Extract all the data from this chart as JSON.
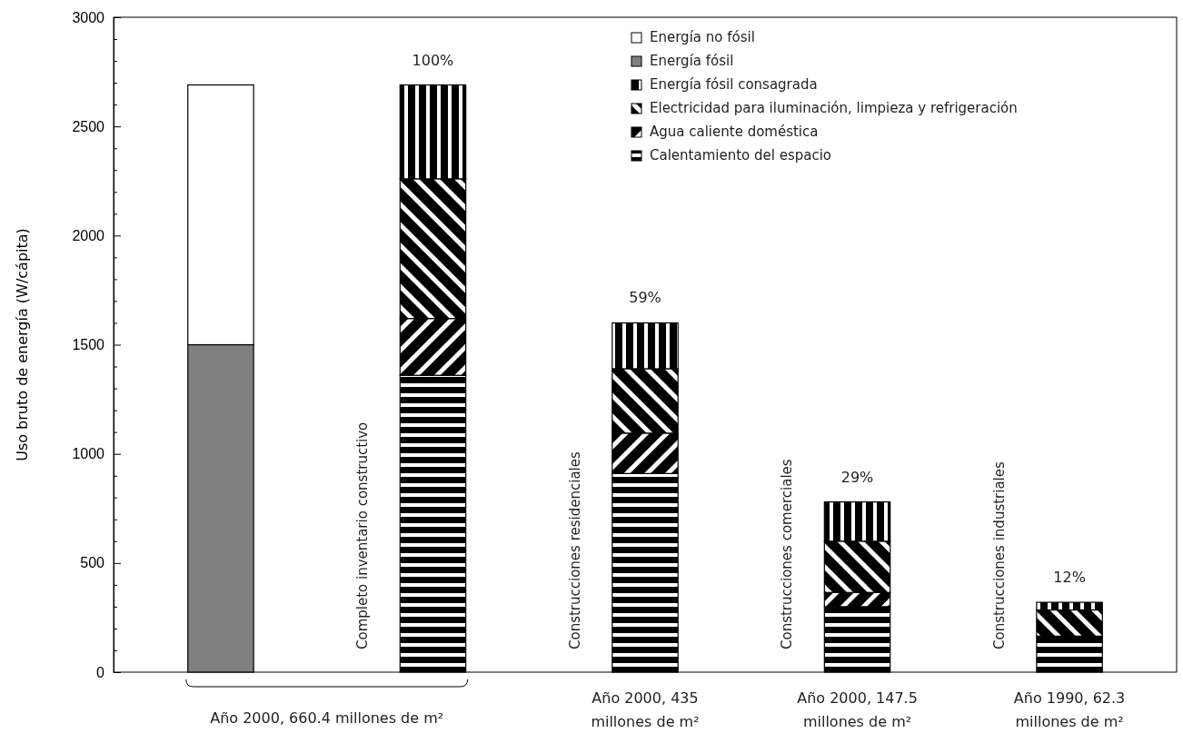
{
  "chart_data": {
    "type": "bar",
    "stacked": true,
    "ylabel": "Uso bruto de energía  (W/cápita)",
    "categories": [
      null,
      null,
      "Año 2000, 435 millones de m²",
      "Año 2000, 147.5 millones de m²",
      "Año 1990, 62.3 millones de m²"
    ],
    "series": [
      {
        "name": "Calentamiento del espacio",
        "color": "#000000",
        "values": [
          null,
          1360,
          910,
          300,
          165
        ]
      },
      {
        "name": "Agua caliente doméstica",
        "color": "#000000",
        "values": [
          null,
          260,
          185,
          65,
          null
        ]
      },
      {
        "name": "Electricidad para iluminación, limpieza y refrigeración",
        "color": "#000000",
        "values": [
          null,
          640,
          295,
          235,
          120
        ]
      },
      {
        "name": "Energía fósil consagrada",
        "color": "#000000",
        "values": [
          null,
          430,
          210,
          180,
          35
        ]
      },
      {
        "name": "Energía fósil",
        "color": "#808080",
        "values": [
          1500,
          null,
          null,
          null,
          null
        ]
      },
      {
        "name": "Energía no fósil",
        "color": "#ffffff",
        "values": [
          1190,
          null,
          null,
          null,
          null
        ]
      }
    ],
    "annotations": [
      "Completo inventario constructivo",
      "Construcciones residenciales",
      "Construcciones comerciales",
      "Construcciones industriales",
      "Año 2000, 660.4 millones de m²",
      "100%",
      "59%",
      "29%",
      "12%"
    ],
    "ylim": [
      0,
      3000
    ],
    "yticks": [
      0,
      {
        "value": 100,
        "label": null
      },
      {
        "value": 200,
        "label": null
      },
      {
        "value": 300,
        "label": null
      },
      {
        "value": 400,
        "label": null
      },
      500,
      {
        "value": 600,
        "label": null
      },
      {
        "value": 700,
        "label": null
      },
      {
        "value": 800,
        "label": null
      },
      {
        "value": 900,
        "label": null
      },
      1000,
      {
        "value": 1100,
        "label": null
      },
      {
        "value": 1200,
        "label": null
      },
      {
        "value": 1300,
        "label": null
      },
      {
        "value": 1400,
        "label": null
      },
      1500,
      {
        "value": 1600,
        "label": null
      },
      {
        "value": 1700,
        "label": null
      },
      {
        "value": 1800,
        "label": null
      },
      {
        "value": 1900,
        "label": null
      },
      2000,
      {
        "value": 2100,
        "label": null
      },
      {
        "value": 2200,
        "label": null
      },
      {
        "value": 2300,
        "label": null
      },
      {
        "value": 2400,
        "label": null
      },
      2500,
      {
        "value": 2600,
        "label": null
      },
      {
        "value": 2700,
        "label": null
      },
      {
        "value": 2800,
        "label": null
      },
      {
        "value": 2900,
        "label": null
      },
      3000
    ],
    "grid": false,
    "legend": "top right"
  }
}
